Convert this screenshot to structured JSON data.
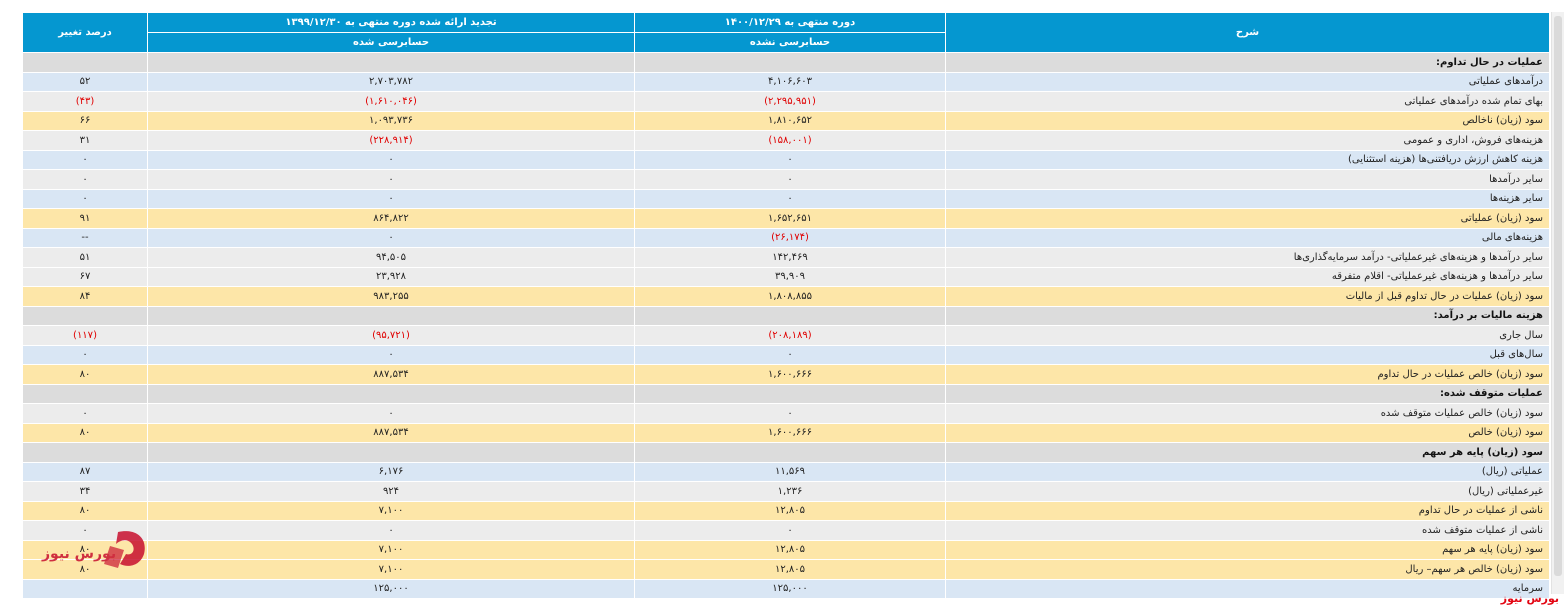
{
  "header": {
    "col_desc": "شرح",
    "col_current": "دوره منتهی به ۱۴۰۰/۱۲/۲۹",
    "col_prev": "تجدید ارائه شده دوره منتهی به ۱۳۹۹/۱۲/۳۰",
    "col_pct": "درصد تغییر",
    "sub_current": "حسابرسی نشده",
    "sub_prev": "حسابرسی شده"
  },
  "rows": [
    {
      "type": "section",
      "desc": "عملیات در حال تداوم:",
      "cur": "",
      "prev": "",
      "pct": ""
    },
    {
      "type": "blue",
      "desc": "درآمدهای عملیاتی",
      "cur": "۴,۱۰۶,۶۰۳",
      "prev": "۲,۷۰۳,۷۸۲",
      "pct": "۵۲"
    },
    {
      "type": "gray",
      "desc": "بهای تمام شده درآمدهای عملیاتی",
      "cur": "(۲,۲۹۵,۹۵۱)",
      "prev": "(۱,۶۱۰,۰۴۶)",
      "pct": "(۴۳)",
      "neg": true
    },
    {
      "type": "gold",
      "desc": "سود (زیان) ناخالص",
      "cur": "۱,۸۱۰,۶۵۲",
      "prev": "۱,۰۹۳,۷۳۶",
      "pct": "۶۶"
    },
    {
      "type": "gray",
      "desc": "هزینه‌های فروش، اداری و عمومی",
      "cur": "(۱۵۸,۰۰۱)",
      "prev": "(۲۲۸,۹۱۴)",
      "pct": "۳۱",
      "neg_vals": true
    },
    {
      "type": "blue",
      "desc": "هزینه کاهش ارزش دریافتنی‌ها (هزینه استثنایی)",
      "cur": "۰",
      "prev": "۰",
      "pct": "۰"
    },
    {
      "type": "gray",
      "desc": "سایر درآمدها",
      "cur": "۰",
      "prev": "۰",
      "pct": "۰"
    },
    {
      "type": "blue",
      "desc": "سایر هزینه‌ها",
      "cur": "۰",
      "prev": "۰",
      "pct": "۰"
    },
    {
      "type": "gold",
      "desc": "سود (زیان) عملیاتی",
      "cur": "۱,۶۵۲,۶۵۱",
      "prev": "۸۶۴,۸۲۲",
      "pct": "۹۱"
    },
    {
      "type": "blue",
      "desc": "هزینه‌های مالی",
      "cur": "(۲۶,۱۷۴)",
      "prev": "۰",
      "pct": "--",
      "neg_cur": true
    },
    {
      "type": "gray",
      "desc": "سایر درآمدها و هزینه‌های غیرعملیاتی- درآمد سرمایه‌گذاری‌ها",
      "cur": "۱۴۲,۴۶۹",
      "prev": "۹۴,۵۰۵",
      "pct": "۵۱"
    },
    {
      "type": "gray",
      "desc": "سایر درآمدها و هزینه‌های غیرعملیاتی- اقلام متفرقه",
      "cur": "۳۹,۹۰۹",
      "prev": "۲۳,۹۲۸",
      "pct": "۶۷"
    },
    {
      "type": "gold",
      "desc": "سود (زیان) عملیات در حال تداوم قبل از مالیات",
      "cur": "۱,۸۰۸,۸۵۵",
      "prev": "۹۸۳,۲۵۵",
      "pct": "۸۴"
    },
    {
      "type": "section",
      "desc": "هزینه مالیات بر درآمد:",
      "cur": "",
      "prev": "",
      "pct": ""
    },
    {
      "type": "gray",
      "desc": "سال جاری",
      "cur": "(۲۰۸,۱۸۹)",
      "prev": "(۹۵,۷۲۱)",
      "pct": "(۱۱۷)",
      "neg": true
    },
    {
      "type": "blue",
      "desc": "سال‌های قبل",
      "cur": "۰",
      "prev": "۰",
      "pct": "۰"
    },
    {
      "type": "gold",
      "desc": "سود (زیان) خالص عملیات در حال تداوم",
      "cur": "۱,۶۰۰,۶۶۶",
      "prev": "۸۸۷,۵۳۴",
      "pct": "۸۰"
    },
    {
      "type": "section",
      "desc": "عملیات متوقف شده:",
      "cur": "",
      "prev": "",
      "pct": ""
    },
    {
      "type": "gray",
      "desc": "سود (زیان) خالص عملیات متوقف شده",
      "cur": "۰",
      "prev": "۰",
      "pct": "۰"
    },
    {
      "type": "gold",
      "desc": "سود (زیان) خالص",
      "cur": "۱,۶۰۰,۶۶۶",
      "prev": "۸۸۷,۵۳۴",
      "pct": "۸۰"
    },
    {
      "type": "section",
      "desc": "سود (زیان) پایه هر سهم",
      "cur": "",
      "prev": "",
      "pct": ""
    },
    {
      "type": "blue",
      "desc": "عملیاتی (ریال)",
      "cur": "۱۱,۵۶۹",
      "prev": "۶,۱۷۶",
      "pct": "۸۷"
    },
    {
      "type": "gray",
      "desc": "غیرعملیاتی (ریال)",
      "cur": "۱,۲۳۶",
      "prev": "۹۲۴",
      "pct": "۳۴"
    },
    {
      "type": "gold",
      "desc": "ناشی از عملیات در حال تداوم",
      "cur": "۱۲,۸۰۵",
      "prev": "۷,۱۰۰",
      "pct": "۸۰"
    },
    {
      "type": "gray",
      "desc": "ناشی از عملیات متوقف شده",
      "cur": "۰",
      "prev": "۰",
      "pct": "۰"
    },
    {
      "type": "gold",
      "desc": "سود (زیان) پایه هر سهم",
      "cur": "۱۲,۸۰۵",
      "prev": "۷,۱۰۰",
      "pct": "۸۰"
    },
    {
      "type": "gold",
      "desc": "سود (زیان) خالص هر سهم– ریال",
      "cur": "۱۲,۸۰۵",
      "prev": "۷,۱۰۰",
      "pct": "۸۰"
    },
    {
      "type": "blue",
      "desc": "سرمایه",
      "cur": "۱۲۵,۰۰۰",
      "prev": "۱۲۵,۰۰۰",
      "pct": ""
    }
  ],
  "watermark": "بورس نیوز",
  "logo_text": "بورس نیوز",
  "colors": {
    "header": "#0597d0",
    "negative": "#e00000",
    "brand": "#e30613"
  }
}
